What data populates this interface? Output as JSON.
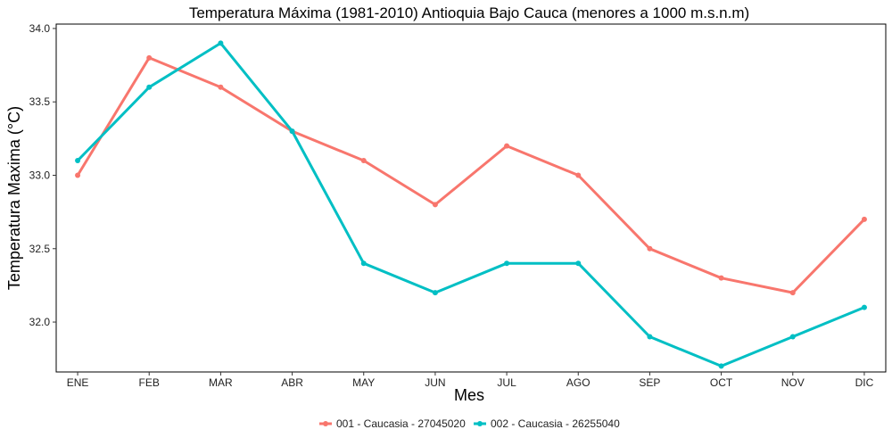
{
  "chart_data": {
    "type": "line",
    "title": "Temperatura Máxima (1981-2010) Antioquia Bajo Cauca (menores a 1000 m.s.n.m)",
    "xlabel": "Mes",
    "ylabel": "Temperatura Maxima (°C)",
    "categories": [
      "ENE",
      "FEB",
      "MAR",
      "ABR",
      "MAY",
      "JUN",
      "JUL",
      "AGO",
      "SEP",
      "OCT",
      "NOV",
      "DIC"
    ],
    "ylim": [
      31.66,
      34.03
    ],
    "yticks": [
      32.0,
      32.5,
      33.0,
      33.5,
      34.0
    ],
    "ytick_labels": [
      "32.0",
      "32.5",
      "33.0",
      "33.5",
      "34.0"
    ],
    "grid": false,
    "legend_position": "bottom",
    "series": [
      {
        "name": "001 - Caucasia - 27045020",
        "color": "#F8766D",
        "values": [
          33.0,
          33.8,
          33.6,
          33.3,
          33.1,
          32.8,
          33.2,
          33.0,
          32.5,
          32.3,
          32.2,
          32.7
        ]
      },
      {
        "name": "002 - Caucasia - 26255040",
        "color": "#00BFC4",
        "values": [
          33.1,
          33.6,
          33.9,
          33.3,
          32.4,
          32.2,
          32.4,
          32.4,
          31.9,
          31.7,
          31.9,
          32.1
        ]
      }
    ]
  }
}
